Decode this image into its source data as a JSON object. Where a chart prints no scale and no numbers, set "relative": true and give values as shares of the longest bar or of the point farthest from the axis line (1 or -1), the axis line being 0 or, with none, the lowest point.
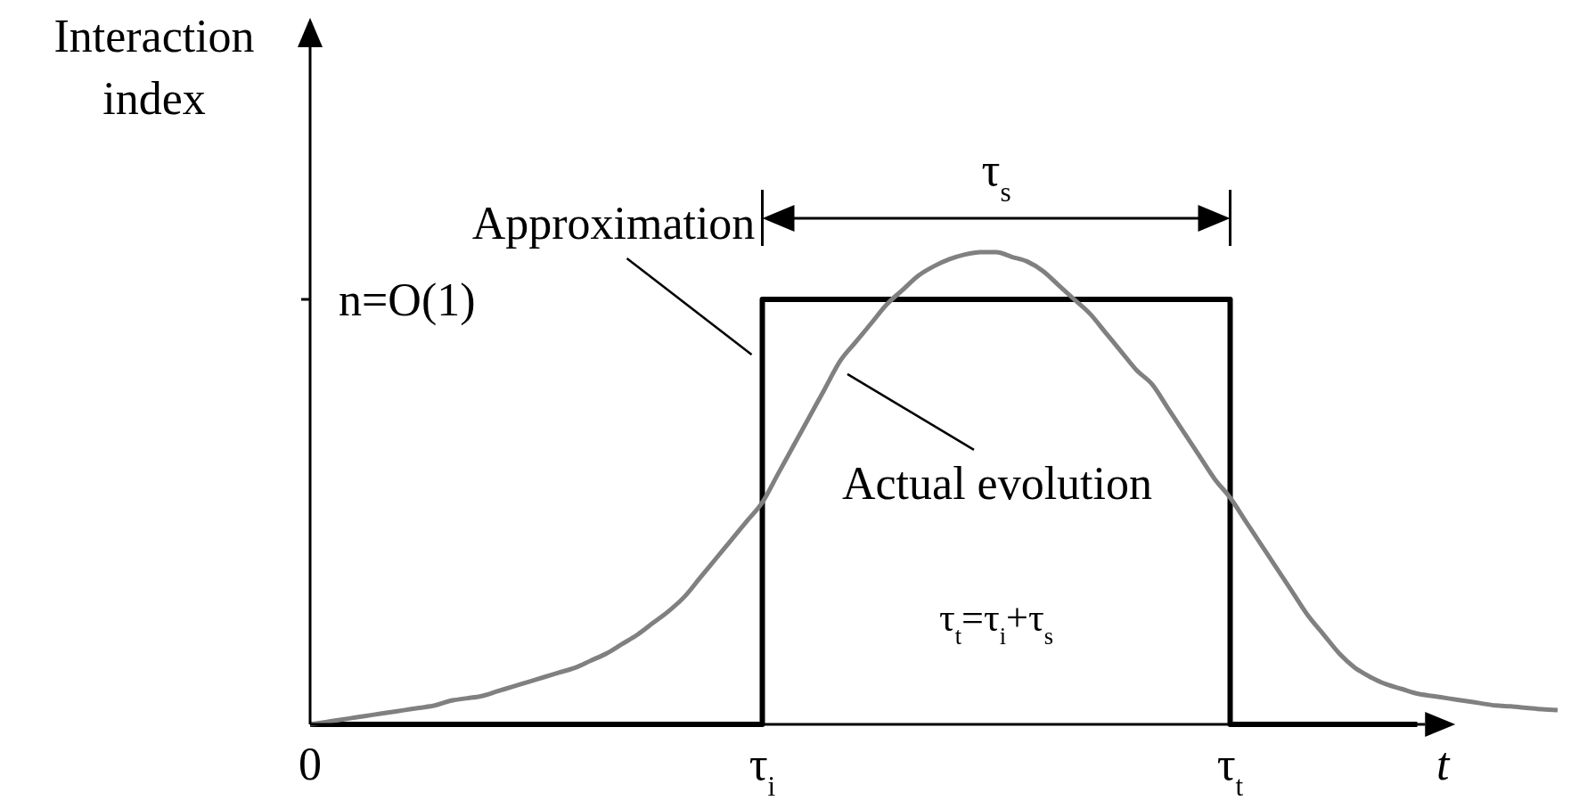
{
  "chart_data": {
    "type": "line",
    "relative": true,
    "xlabel": "t",
    "ylabel": "Interaction index",
    "categories": [
      "0",
      null,
      null,
      null,
      null,
      null,
      null,
      null,
      null,
      null,
      null,
      null,
      null,
      null,
      null,
      null,
      null,
      null,
      null,
      null,
      null,
      null,
      null,
      null,
      null,
      null,
      null,
      null,
      null,
      "τ$_{i}$",
      null,
      null,
      null,
      null,
      null,
      null,
      null,
      null,
      null,
      null,
      null,
      null,
      null,
      null,
      null,
      null,
      null,
      null,
      null,
      null,
      null,
      null,
      null,
      null,
      null,
      null,
      null,
      null,
      null,
      "τ$_{t}$",
      null,
      null,
      null,
      null,
      null,
      null,
      null,
      null,
      null,
      null,
      null,
      null,
      null,
      null,
      null,
      null,
      null,
      null,
      null,
      null,
      null
    ],
    "series": [
      {
        "name": "Approximation",
        "type": "step",
        "color": "#000000",
        "values": [
          0,
          0,
          0,
          0,
          0,
          0,
          0,
          0,
          0,
          0,
          0,
          0,
          0,
          0,
          0,
          0,
          0,
          0,
          0,
          0,
          0,
          0,
          0,
          0,
          0,
          0,
          0,
          0,
          0,
          0.9,
          0.9,
          0.9,
          0.9,
          0.9,
          0.9,
          0.9,
          0.9,
          0.9,
          0.9,
          0.9,
          0.9,
          0.9,
          0.9,
          0.9,
          0.9,
          0.9,
          0.9,
          0.9,
          0.9,
          0.9,
          0.9,
          0.9,
          0.9,
          0.9,
          0.9,
          0.9,
          0.9,
          0.9,
          0.9,
          0,
          0,
          0,
          0,
          0,
          0,
          0,
          0,
          0,
          0,
          0,
          0,
          0,
          null,
          null,
          null,
          null,
          null,
          null,
          null,
          null,
          null
        ]
      },
      {
        "name": "Actual evolution",
        "type": "line",
        "color": "#808080",
        "values": [
          0,
          0.005,
          0.01,
          0.015,
          0.02,
          0.025,
          0.03,
          0.035,
          0.04,
          0.05,
          0.055,
          0.06,
          0.07,
          0.08,
          0.09,
          0.1,
          0.11,
          0.12,
          0.135,
          0.15,
          0.17,
          0.19,
          0.215,
          0.24,
          0.27,
          0.31,
          0.35,
          0.39,
          0.43,
          0.47,
          0.53,
          0.59,
          0.65,
          0.71,
          0.77,
          0.81,
          0.85,
          0.89,
          0.92,
          0.95,
          0.97,
          0.985,
          0.995,
          1,
          1,
          0.99,
          0.98,
          0.96,
          0.93,
          0.9,
          0.87,
          0.83,
          0.79,
          0.75,
          0.72,
          0.67,
          0.62,
          0.57,
          0.52,
          0.48,
          0.43,
          0.38,
          0.33,
          0.28,
          0.23,
          0.19,
          0.15,
          0.12,
          0.1,
          0.085,
          0.075,
          0.065,
          0.06,
          0.055,
          0.05,
          0.045,
          0.04,
          0.038,
          0.035,
          0.032,
          0.03
        ]
      }
    ],
    "annotations": [
      "τ$_{s}$",
      "τ$_{t}$=τ$_{i}$+τ$_{s}$",
      "n=O(1)"
    ]
  }
}
